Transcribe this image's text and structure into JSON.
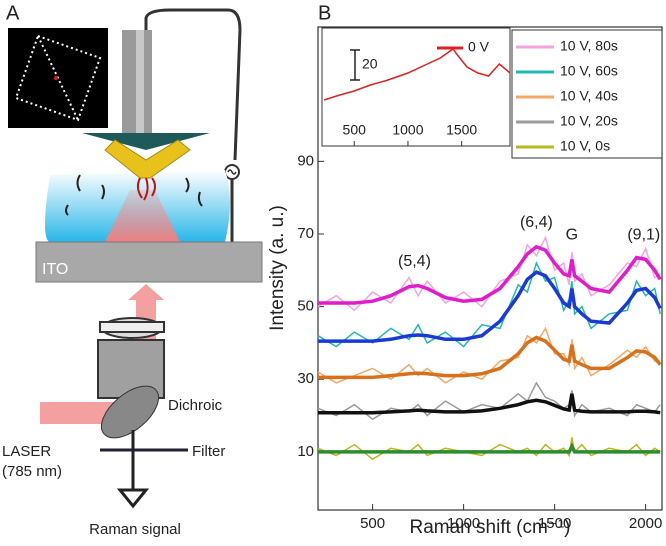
{
  "diagram": {
    "panel_label": "A",
    "ito": "ITO",
    "laser": "LASER",
    "laser_wavelength": "(785 nm)",
    "dichroic": "Dichroic",
    "filter": "Filter",
    "raman_signal": "Raman signal"
  },
  "chart_data": {
    "type": "line",
    "panel_label": "B",
    "x_label": "Raman shift (cm⁻¹)",
    "y_label": "Intensity (a. u.)",
    "xlim": [
      200,
      2090
    ],
    "ylim": [
      -6,
      127
    ],
    "xticks": [
      500,
      1000,
      1500,
      2000
    ],
    "yticks": [
      10,
      30,
      50,
      70,
      90
    ],
    "x": [
      200,
      300,
      400,
      500,
      600,
      700,
      750,
      800,
      900,
      1000,
      1100,
      1200,
      1300,
      1350,
      1400,
      1450,
      1500,
      1550,
      1580,
      1595,
      1610,
      1650,
      1700,
      1800,
      1900,
      1950,
      2000,
      2050,
      2080
    ],
    "series": [
      {
        "name": "10 V, 80s",
        "color": "#f4a4dc",
        "fit_color": "#e01ccc",
        "values": [
          50,
          53,
          49,
          54,
          51,
          58,
          53,
          57,
          51,
          54,
          50,
          57,
          59,
          67,
          64,
          69,
          60,
          62,
          56,
          65,
          57,
          59,
          53,
          56,
          62,
          61,
          66,
          58,
          59
        ],
        "fit_values": [
          51,
          51,
          51,
          51.5,
          53,
          55.5,
          55.8,
          55,
          52.5,
          51.5,
          52,
          55,
          61,
          64.5,
          66.5,
          65.5,
          62,
          59,
          58.5,
          63,
          58.5,
          57,
          55,
          54,
          60,
          63.5,
          63,
          60,
          57.5
        ]
      },
      {
        "name": "10 V, 60s",
        "color": "#20b8b0",
        "fit_color": "#1a3ad8",
        "values": [
          42,
          39,
          43,
          40,
          44,
          41,
          45,
          40,
          43,
          39,
          45,
          44,
          56,
          54,
          62,
          57,
          58,
          49,
          52,
          57,
          48,
          50,
          44,
          48,
          49,
          57,
          53,
          55,
          48
        ],
        "fit_values": [
          40.5,
          40.5,
          40.5,
          40.5,
          41,
          42,
          42.2,
          42,
          41,
          41,
          42,
          46,
          53,
          57.5,
          59.5,
          58.5,
          55,
          51,
          50,
          55,
          50,
          48,
          46,
          45.5,
          51,
          54.5,
          55,
          52.5,
          49.5
        ]
      },
      {
        "name": "10 V, 40s",
        "color": "#f4a868",
        "fit_color": "#d8701c",
        "values": [
          32,
          29,
          31,
          33,
          30,
          34,
          31,
          33,
          29,
          32,
          30,
          35,
          36,
          42,
          40,
          44,
          37,
          37,
          34,
          41,
          33,
          36,
          31,
          34,
          38,
          36,
          39,
          35,
          35
        ],
        "fit_values": [
          30.5,
          30.5,
          30.5,
          30.5,
          31,
          31.5,
          31.7,
          31.5,
          31,
          31,
          31.5,
          33,
          37,
          40,
          41.5,
          40.5,
          38,
          35.5,
          35,
          39.5,
          35,
          34,
          33,
          33,
          36,
          37.8,
          37.5,
          36,
          34
        ]
      },
      {
        "name": "10 V, 20s",
        "color": "#9a9a9a",
        "fit_color": "#111111",
        "values": [
          22,
          20,
          23,
          19,
          22,
          21,
          23,
          20,
          24,
          21,
          23,
          22,
          26,
          24,
          29,
          25,
          24,
          22,
          23,
          27,
          20,
          23,
          21,
          22,
          20,
          23,
          22,
          21,
          23
        ],
        "fit_values": [
          20.8,
          20.8,
          20.8,
          20.8,
          21,
          21.3,
          21.5,
          21.3,
          21,
          21,
          21.3,
          22,
          23,
          23.8,
          24.2,
          23.8,
          22.8,
          21.8,
          21.5,
          26,
          21.5,
          21.2,
          21,
          21,
          21,
          21.2,
          21.2,
          21,
          20.8
        ]
      },
      {
        "name": "10 V, 0s",
        "color": "#b8b820",
        "fit_color": "#2e8b2e",
        "values": [
          11,
          9,
          12,
          8,
          11,
          10,
          12,
          9,
          11,
          10,
          9,
          12,
          10,
          11,
          9,
          12,
          10,
          11,
          9,
          14,
          10,
          12,
          9,
          11,
          10,
          12,
          9,
          11,
          10
        ],
        "fit_values": [
          10,
          10,
          10,
          10,
          10,
          10,
          10,
          10,
          10,
          10,
          10,
          10,
          10,
          10,
          10,
          10,
          10,
          10,
          10,
          11.5,
          10,
          10,
          10,
          10,
          10,
          10,
          10,
          10,
          10
        ]
      }
    ],
    "annotations": [
      {
        "label": "(5,4)",
        "x": 730
      },
      {
        "label": "(6,4)",
        "x": 1400
      },
      {
        "label": "G",
        "x": 1595
      },
      {
        "label": "(9,1)",
        "x": 1990
      }
    ],
    "inset": {
      "xlim": [
        200,
        1950
      ],
      "ylim": [
        0,
        60
      ],
      "xticks": [
        500,
        1000,
        1500
      ],
      "scale_bar": 20,
      "scale_bar_label": "20",
      "series": [
        {
          "name": "0 V",
          "color": "#e02020",
          "x": [
            220,
            350,
            500,
            650,
            800,
            1000,
            1150,
            1300,
            1380,
            1420,
            1460,
            1550,
            1650,
            1750,
            1850,
            1950
          ],
          "values": [
            12,
            15,
            18,
            22,
            25,
            30,
            35,
            40,
            44,
            46,
            42,
            34,
            30,
            28,
            36,
            30
          ]
        }
      ]
    }
  }
}
